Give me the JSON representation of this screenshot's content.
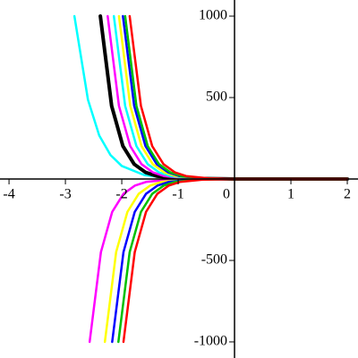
{
  "chart_data": {
    "type": "line",
    "xlim": [
      -4.16,
      2.19
    ],
    "ylim": [
      -1099,
      1099
    ],
    "xticks": [
      -4,
      -3,
      -2,
      -1,
      0,
      1,
      2
    ],
    "yticks": [
      -1000,
      -500,
      500,
      1000
    ],
    "series": [
      {
        "color": "#00ffff",
        "linewidth": 2.5,
        "x": [
          -2.84,
          -2.6,
          -2.4,
          -2.2,
          -2,
          -1.6,
          -1.2,
          -0.8,
          0,
          2
        ],
        "values": [
          1000,
          487,
          267,
          147,
          80,
          24,
          7,
          2,
          0,
          0
        ]
      },
      {
        "color": "#000000",
        "linewidth": 4,
        "x": [
          -2.38,
          -2.18,
          -1.98,
          -1.78,
          -1.58,
          -1.38,
          -0.98,
          0,
          2
        ],
        "values": [
          1000,
          449,
          202,
          91,
          41,
          18,
          4,
          0,
          0
        ]
      },
      {
        "color": "#ff00ff",
        "linewidth": 2.5,
        "x": [
          -2.25,
          -2.05,
          -1.85,
          -1.65,
          -1.45,
          -1.25,
          -0.85,
          0,
          2
        ],
        "values": [
          1000,
          449,
          202,
          91,
          41,
          18,
          4,
          0,
          0
        ]
      },
      {
        "color": "#00ffff",
        "linewidth": 2.5,
        "x": [
          -2.14,
          -1.94,
          -1.74,
          -1.54,
          -1.34,
          -1.14,
          -0.74,
          0,
          2
        ],
        "values": [
          1000,
          449,
          202,
          91,
          41,
          18,
          4,
          0,
          0
        ]
      },
      {
        "color": "#ffff00",
        "linewidth": 2.5,
        "x": [
          -2.05,
          -1.85,
          -1.65,
          -1.45,
          -1.25,
          -1.05,
          -0.65,
          0,
          2
        ],
        "values": [
          1000,
          449,
          202,
          91,
          41,
          18,
          4,
          0,
          0
        ]
      },
      {
        "color": "#0000ff",
        "linewidth": 2.5,
        "x": [
          -1.98,
          -1.78,
          -1.58,
          -1.38,
          -1.18,
          -0.98,
          -0.58,
          0,
          2
        ],
        "values": [
          1000,
          449,
          202,
          91,
          41,
          18,
          4,
          0,
          0
        ]
      },
      {
        "color": "#00c000",
        "linewidth": 2.5,
        "x": [
          -1.94,
          -1.74,
          -1.54,
          -1.34,
          -1.14,
          -0.94,
          -0.54,
          0,
          2
        ],
        "values": [
          1000,
          449,
          202,
          91,
          41,
          18,
          4,
          0,
          0
        ]
      },
      {
        "color": "#ff0000",
        "linewidth": 2.5,
        "x": [
          -1.86,
          -1.66,
          -1.46,
          -1.26,
          -1.06,
          -0.86,
          -0.46,
          0,
          2
        ],
        "values": [
          1000,
          449,
          202,
          91,
          41,
          18,
          4,
          0,
          0
        ]
      },
      {
        "color": "#ff00ff",
        "linewidth": 2.5,
        "x": [
          -2.57,
          -2.37,
          -2.17,
          -1.97,
          -1.77,
          -1.57,
          -1.17,
          0,
          2
        ],
        "values": [
          -1000,
          -449,
          -202,
          -91,
          -41,
          -18,
          -4,
          0,
          0
        ]
      },
      {
        "color": "#ffff00",
        "linewidth": 2.5,
        "x": [
          -2.3,
          -2.1,
          -1.9,
          -1.7,
          -1.5,
          -1.3,
          -0.9,
          0,
          2
        ],
        "values": [
          -1000,
          -449,
          -202,
          -91,
          -41,
          -18,
          -4,
          0,
          0
        ]
      },
      {
        "color": "#0000ff",
        "linewidth": 2.5,
        "x": [
          -2.17,
          -1.97,
          -1.77,
          -1.57,
          -1.37,
          -1.17,
          -0.77,
          0,
          2
        ],
        "values": [
          -1000,
          -449,
          -202,
          -91,
          -41,
          -18,
          -4,
          0,
          0
        ]
      },
      {
        "color": "#00c000",
        "linewidth": 2.5,
        "x": [
          -2.06,
          -1.86,
          -1.66,
          -1.46,
          -1.26,
          -1.06,
          -0.66,
          0,
          2
        ],
        "values": [
          -1000,
          -449,
          -202,
          -91,
          -41,
          -18,
          -4,
          0,
          0
        ]
      },
      {
        "color": "#ff0000",
        "linewidth": 2.5,
        "x": [
          -1.97,
          -1.77,
          -1.57,
          -1.37,
          -1.17,
          -0.97,
          -0.57,
          0,
          2
        ],
        "values": [
          -1000,
          -449,
          -202,
          -91,
          -41,
          -18,
          -4,
          0,
          0
        ]
      }
    ]
  }
}
